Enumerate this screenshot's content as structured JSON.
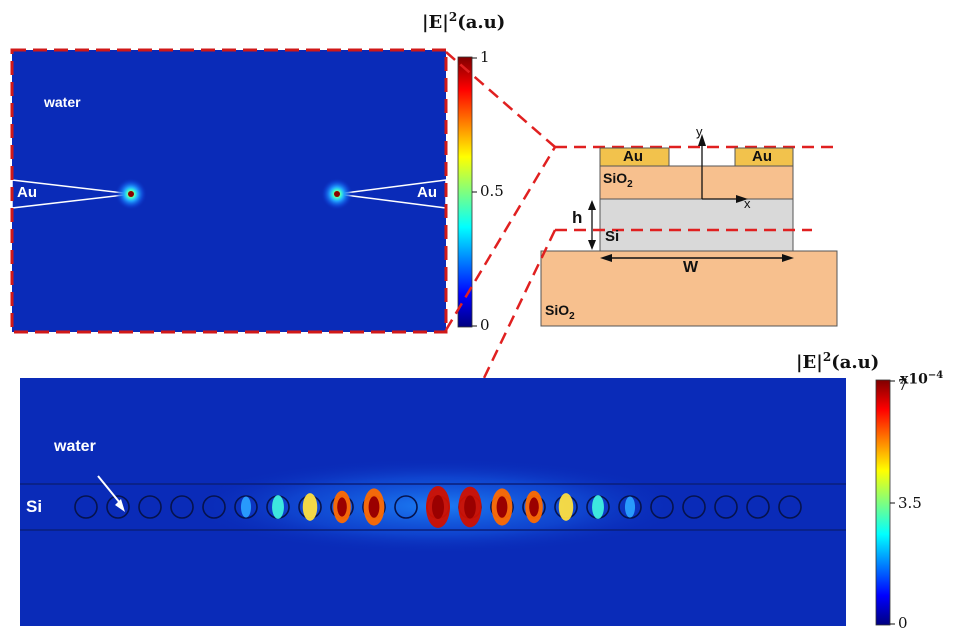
{
  "top_panel": {
    "colorbar": {
      "title_main": "|E|",
      "title_sup": "2",
      "title_unit": "(a.u)",
      "ticks": [
        "1",
        "0.5",
        "0"
      ]
    },
    "labels": {
      "medium": "water",
      "left_tip": "Au",
      "right_tip": "Au"
    }
  },
  "schematic": {
    "labels": {
      "au_left": "Au",
      "au_right": "Au",
      "sio2_top_base": "SiO",
      "sio2_top_sub": "2",
      "y_axis": "y",
      "x_axis": "x",
      "height": "h",
      "silicon": "Si",
      "width": "W",
      "sio2_bottom_base": "SiO",
      "sio2_bottom_sub": "2"
    },
    "colors": {
      "gold": "#f2c24c",
      "oxide": "#f7c08e",
      "silicon": "#d9d9d9"
    }
  },
  "bottom_panel": {
    "colorbar": {
      "title_main": "|E|",
      "title_sup": "2",
      "title_unit": "(a.u)",
      "multiplier_base": "x10",
      "multiplier_exp": "−4",
      "ticks": [
        "7",
        "3.5",
        "0"
      ]
    },
    "labels": {
      "medium": "water",
      "waveguide": "Si"
    }
  },
  "colors": {
    "field_background": "#0a2bb8",
    "zoom_lines": "#e02020"
  }
}
